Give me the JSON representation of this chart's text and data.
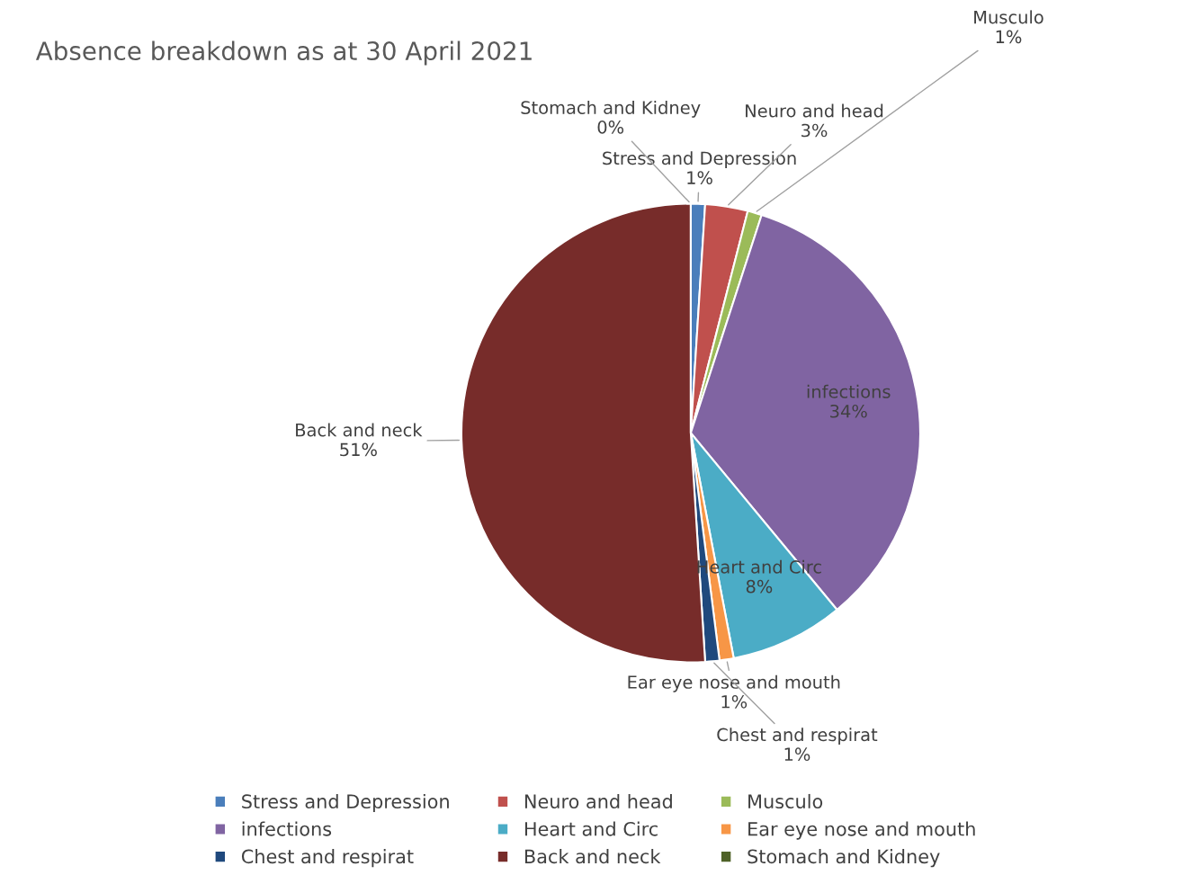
{
  "chart_data": {
    "type": "pie",
    "title": "Absence breakdown as at 30 April 2021",
    "categories": [
      "Stress and Depression",
      "Neuro and head",
      "Musculo",
      "infections",
      "Heart and Circ",
      "Ear eye nose and mouth",
      "Chest and respirat",
      "Back and neck",
      "Stomach and Kidney"
    ],
    "values": [
      1,
      3,
      1,
      34,
      8,
      1,
      1,
      51,
      0
    ],
    "value_labels": [
      "1%",
      "3%",
      "1%",
      "34%",
      "8%",
      "1%",
      "1%",
      "51%",
      "0%"
    ],
    "colors": [
      "#4a7ebb",
      "#c0504d",
      "#9bbb59",
      "#8064a2",
      "#4bacc6",
      "#f79646",
      "#1f497d",
      "#772c2a",
      "#4f6228"
    ],
    "legend": "bottom"
  }
}
